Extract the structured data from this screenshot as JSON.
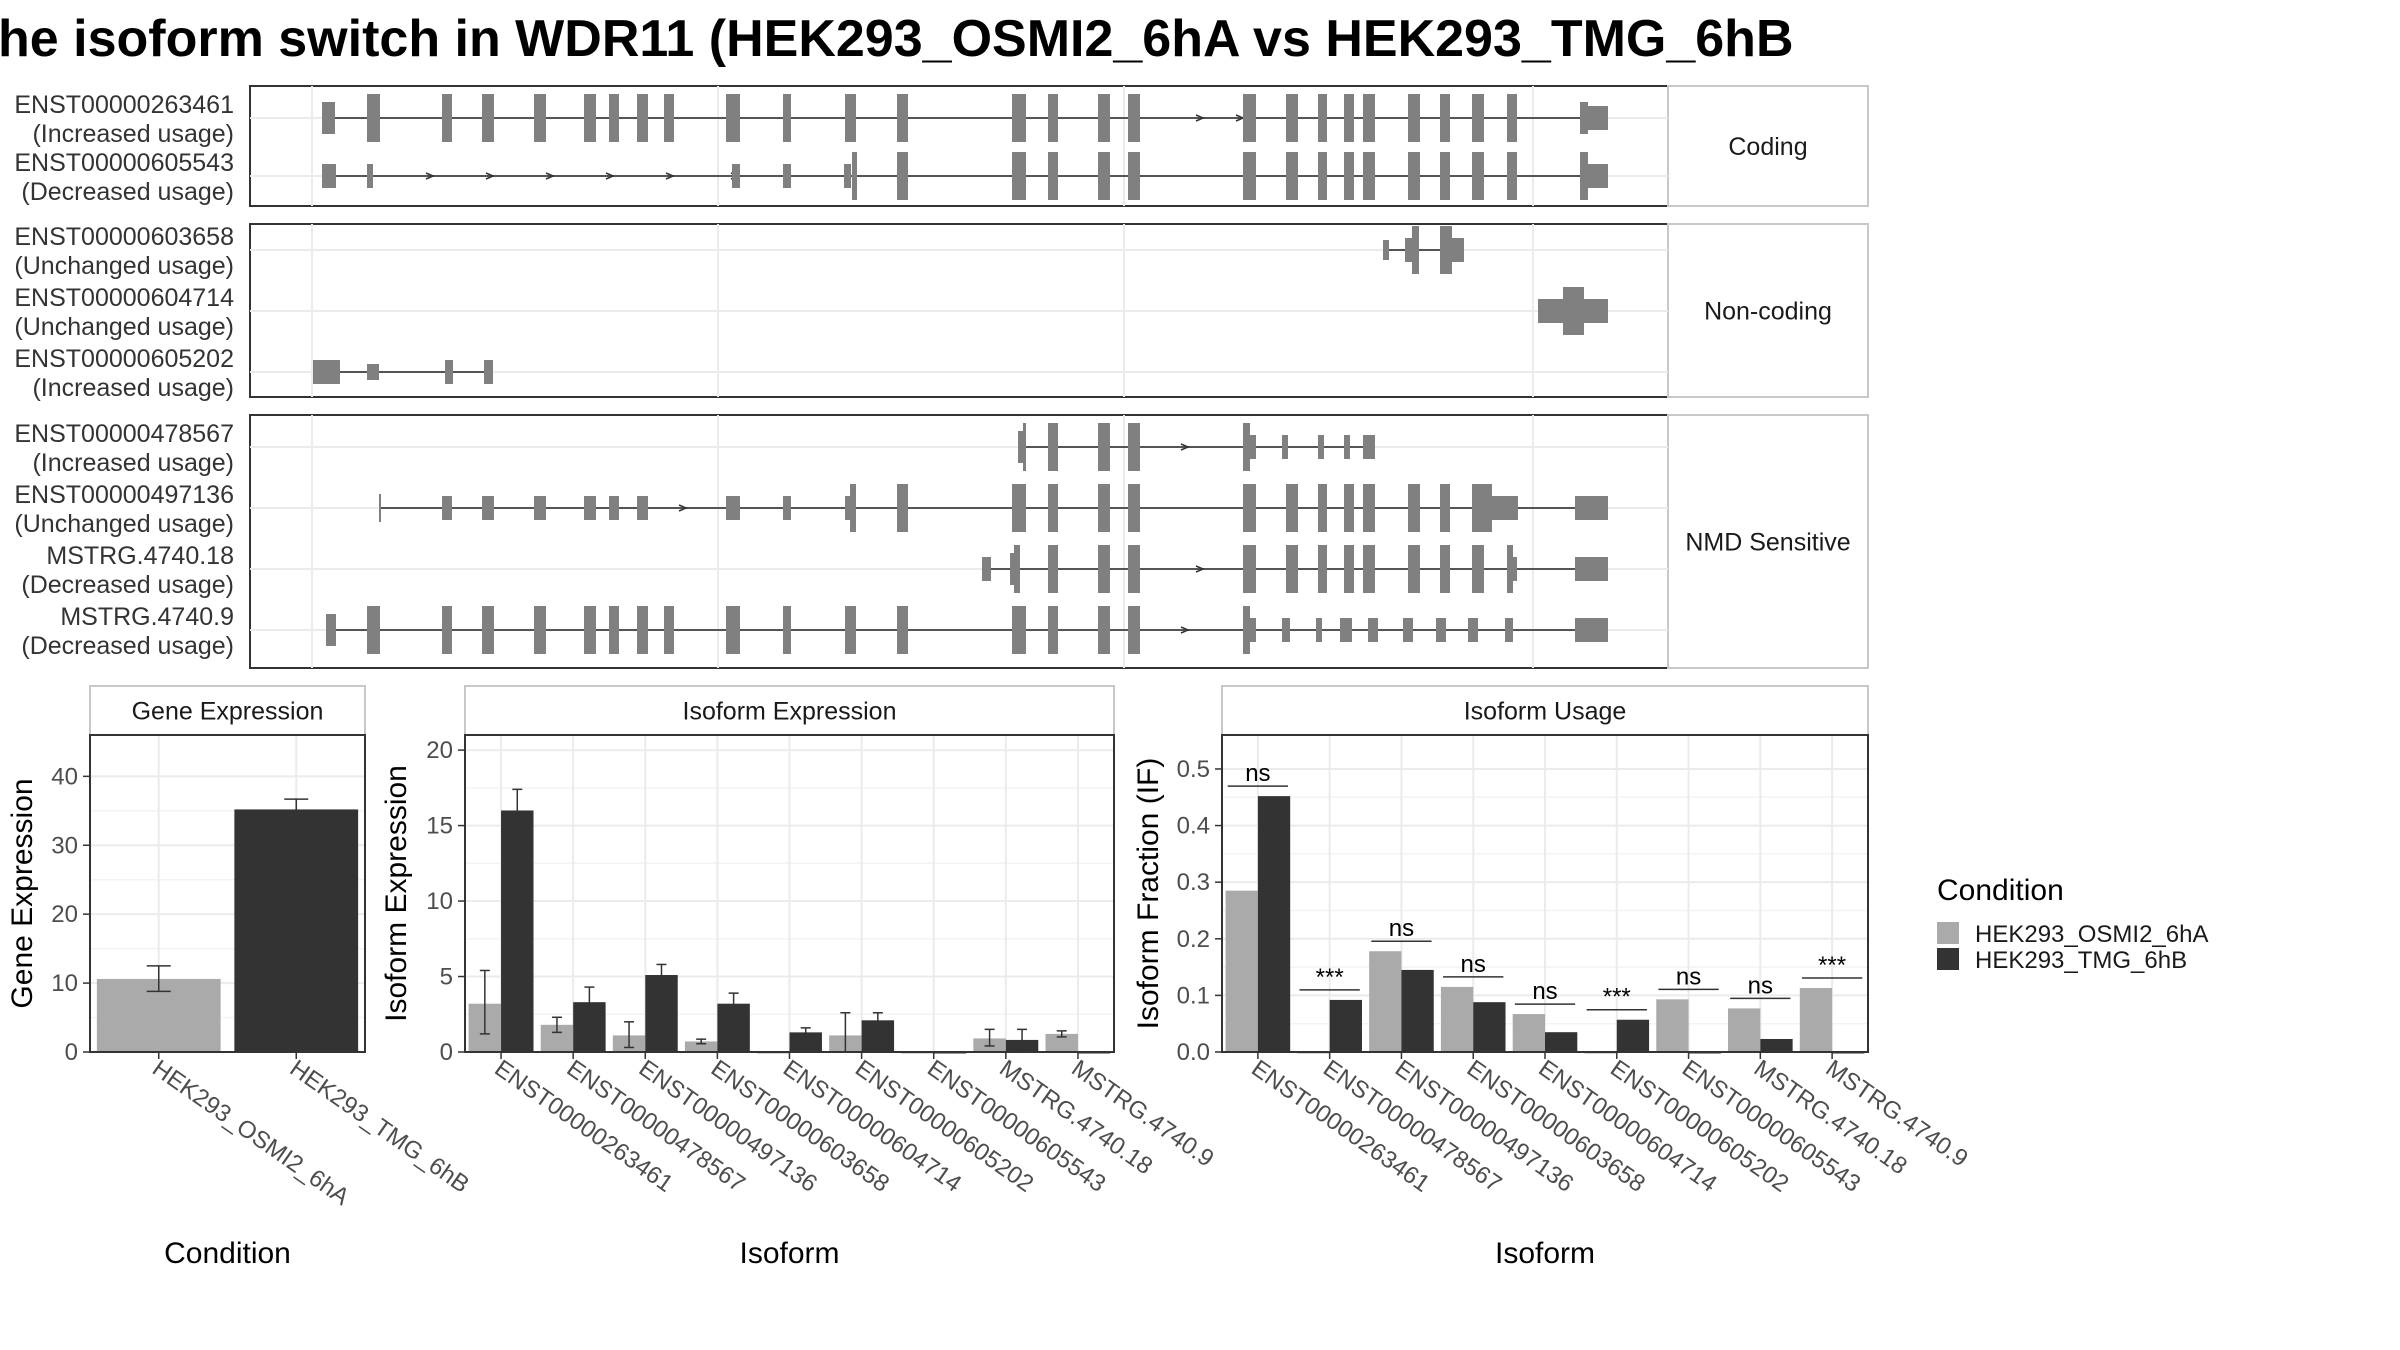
{
  "title": "he isoform switch in WDR11 (HEK293_OSMI2_6hA vs HEK293_TMG_6hB",
  "structure": {
    "groups": [
      "Coding",
      "Non-coding",
      "NMD Sensitive"
    ],
    "isoforms": [
      {
        "id": "ENST00000263461",
        "usage": "(Increased usage)",
        "group": "Coding"
      },
      {
        "id": "ENST00000605543",
        "usage": "(Decreased usage)",
        "group": "Coding"
      },
      {
        "id": "ENST00000603658",
        "usage": "(Unchanged usage)",
        "group": "Non-coding"
      },
      {
        "id": "ENST00000604714",
        "usage": "(Unchanged usage)",
        "group": "Non-coding"
      },
      {
        "id": "ENST00000605202",
        "usage": "(Increased usage)",
        "group": "Non-coding"
      },
      {
        "id": "ENST00000478567",
        "usage": "(Increased usage)",
        "group": "NMD Sensitive"
      },
      {
        "id": "ENST00000497136",
        "usage": "(Unchanged usage)",
        "group": "NMD Sensitive"
      },
      {
        "id": "MSTRG.4740.18",
        "usage": "(Decreased usage)",
        "group": "NMD Sensitive"
      },
      {
        "id": "MSTRG.4740.9",
        "usage": "(Decreased usage)",
        "group": "NMD Sensitive"
      }
    ]
  },
  "legend": {
    "title": "Condition",
    "items": [
      {
        "label": "HEK293_OSMI2_6hA",
        "color": "#aaaaaa"
      },
      {
        "label": "HEK293_TMG_6hB",
        "color": "#333333"
      }
    ]
  },
  "chart_data": [
    {
      "type": "bar",
      "panel": "Gene Expression",
      "categories": [
        "HEK293_OSMI2_6hA",
        "HEK293_TMG_6hB"
      ],
      "values": [
        10.6,
        35.2
      ],
      "errors": [
        [
          8.8,
          12.5
        ],
        [
          33.8,
          36.7
        ]
      ],
      "xlabel": "Condition",
      "ylabel": "Gene Expression",
      "ylim": [
        0,
        46
      ],
      "yticks": [
        0,
        10,
        20,
        30,
        40
      ],
      "grid": true
    },
    {
      "type": "bar",
      "panel": "Isoform Expression",
      "categories": [
        "ENST00000263461",
        "ENST00000478567",
        "ENST00000497136",
        "ENST00000603658",
        "ENST00000604714",
        "ENST00000605202",
        "ENST00000605543",
        "MSTRG.4740.18",
        "MSTRG.4740.9"
      ],
      "series": [
        {
          "values": [
            3.2,
            1.8,
            1.1,
            0.7,
            0.0,
            1.1,
            0.0,
            0.9,
            1.2
          ],
          "errors": [
            [
              1.2,
              5.4
            ],
            [
              1.3,
              2.3
            ],
            [
              0.3,
              2.0
            ],
            [
              0.55,
              0.85
            ],
            null,
            [
              0.0,
              2.6
            ],
            null,
            [
              0.4,
              1.5
            ],
            [
              1.0,
              1.4
            ]
          ]
        },
        {
          "values": [
            16.0,
            3.3,
            5.1,
            3.2,
            1.3,
            2.1,
            0.0,
            0.8,
            0.0
          ],
          "errors": [
            [
              14.8,
              17.4
            ],
            [
              2.4,
              4.3
            ],
            [
              4.5,
              5.8
            ],
            [
              2.6,
              3.9
            ],
            [
              1.1,
              1.6
            ],
            [
              1.6,
              2.6
            ],
            null,
            [
              0.1,
              1.5
            ],
            null
          ]
        }
      ],
      "xlabel": "Isoform",
      "ylabel": "Isoform Expression",
      "ylim": [
        0,
        21
      ],
      "yticks": [
        0,
        5,
        10,
        15,
        20
      ],
      "grid": true
    },
    {
      "type": "bar",
      "panel": "Isoform Usage",
      "categories": [
        "ENST00000263461",
        "ENST00000478567",
        "ENST00000497136",
        "ENST00000603658",
        "ENST00000604714",
        "ENST00000605202",
        "ENST00000605543",
        "MSTRG.4740.18",
        "MSTRG.4740.9"
      ],
      "series": [
        {
          "values": [
            0.285,
            0.0,
            0.178,
            0.115,
            0.067,
            0.0,
            0.093,
            0.077,
            0.113
          ]
        },
        {
          "values": [
            0.452,
            0.092,
            0.145,
            0.088,
            0.035,
            0.057,
            0.0,
            0.023,
            0.0
          ]
        }
      ],
      "significance": [
        "ns",
        "***",
        "ns",
        "ns",
        "ns",
        "***",
        "ns",
        "ns",
        "***"
      ],
      "xlabel": "Isoform",
      "ylabel": "Isoform Fraction (IF)",
      "ylim": [
        0,
        0.56
      ],
      "yticks": [
        0.0,
        0.1,
        0.2,
        0.3,
        0.4,
        0.5
      ],
      "grid": true
    }
  ]
}
